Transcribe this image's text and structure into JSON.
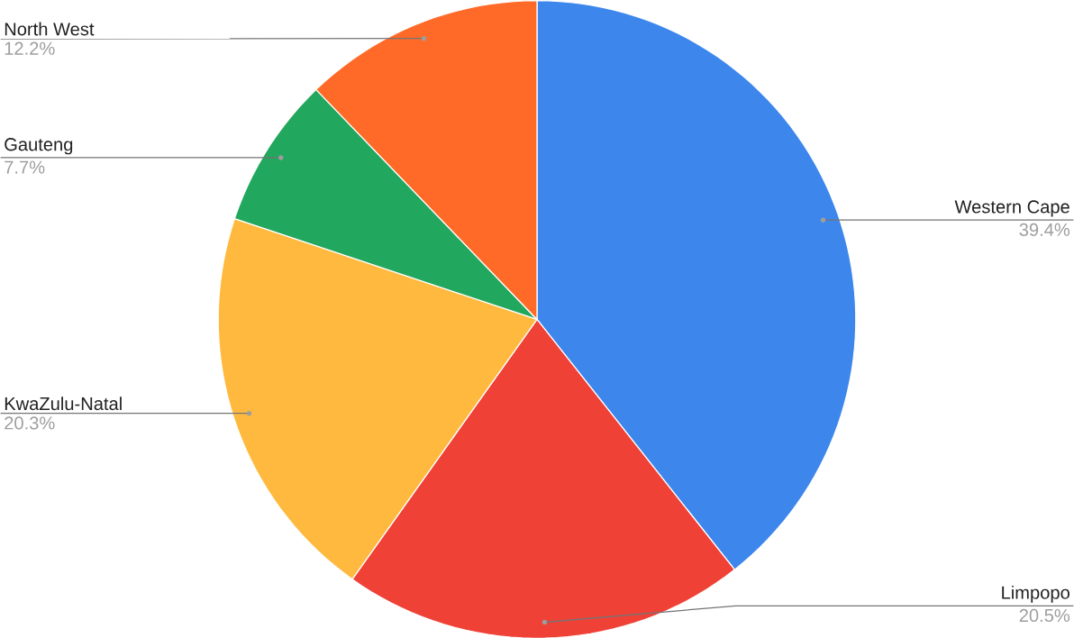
{
  "chart_data": {
    "type": "pie",
    "categories": [
      "Western Cape",
      "Limpopo",
      "KwaZulu-Natal",
      "Gauteng",
      "North West"
    ],
    "values": [
      39.4,
      20.5,
      20.3,
      7.7,
      12.2
    ],
    "value_labels": [
      "39.4%",
      "20.5%",
      "20.3%",
      "7.7%",
      "12.2%"
    ],
    "colors": [
      "#3d87ec",
      "#ef4136",
      "#ffb93e",
      "#22a75e",
      "#ff6a28"
    ]
  }
}
